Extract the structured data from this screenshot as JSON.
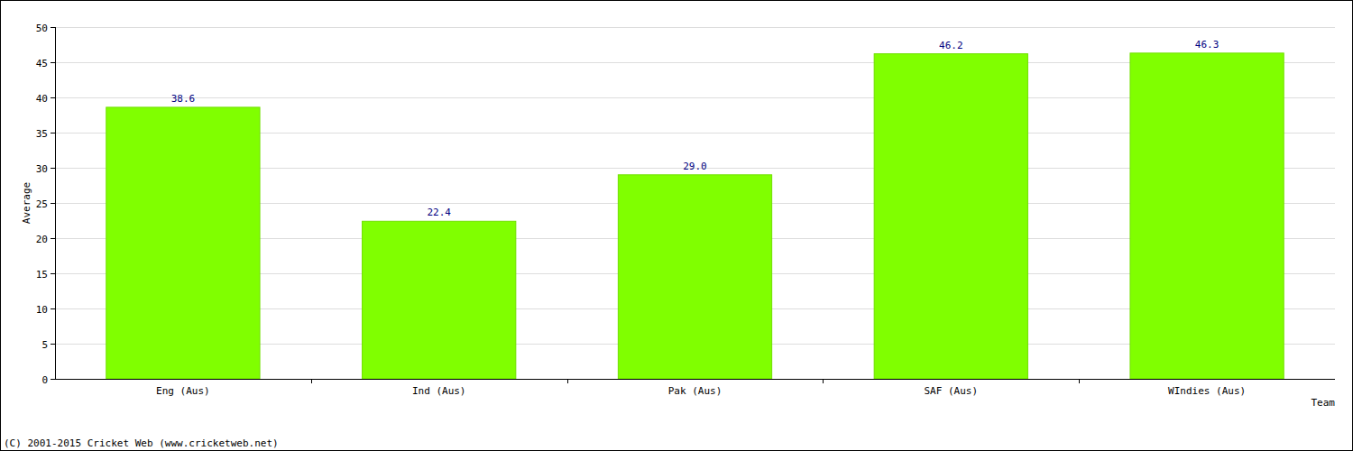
{
  "chart_data": {
    "type": "bar",
    "x_label": "Team",
    "y_label": "Average",
    "annotations": [
      "(C) 2001-2015 Cricket Web (www.cricketweb.net)"
    ],
    "categories": [
      "Eng (Aus)",
      "Ind (Aus)",
      "Pak (Aus)",
      "SAF (Aus)",
      "WIndies (Aus)"
    ],
    "values": [
      38.6,
      22.4,
      29.0,
      46.2,
      46.3
    ],
    "value_labels": [
      "38.6",
      "22.4",
      "29.0",
      "46.2",
      "46.3"
    ],
    "data_labels": true,
    "color": "#80ff00",
    "ylim": [
      0,
      50
    ],
    "yticks": [
      0,
      5,
      10,
      15,
      20,
      25,
      30,
      35,
      40,
      45,
      50
    ],
    "grid": true
  }
}
